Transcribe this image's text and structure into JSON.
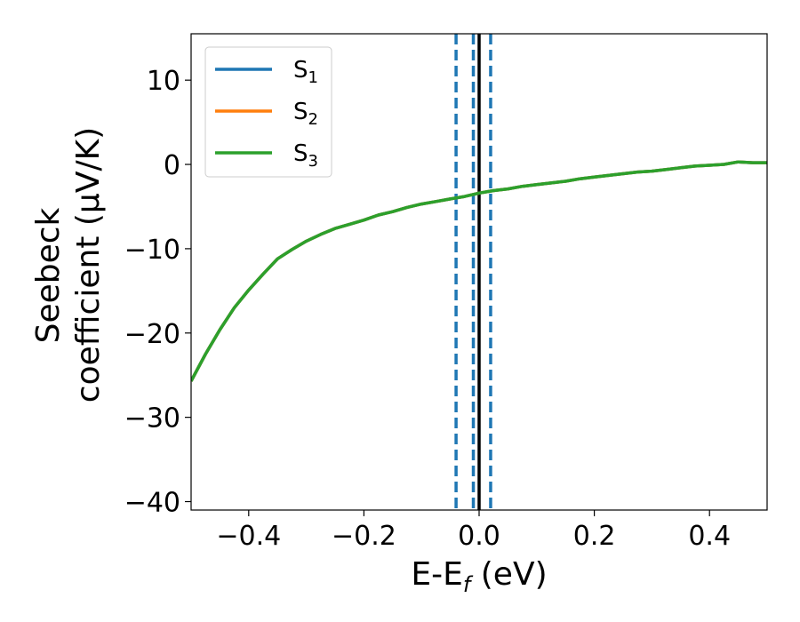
{
  "chart_data": {
    "type": "line",
    "xlabel": {
      "main": "E-E",
      "sub": "f",
      "unit": " (eV)"
    },
    "ylabel": {
      "line1": "Seebeck",
      "line2": "coefficient  (μV/K)"
    },
    "xlim": [
      -0.5,
      0.5
    ],
    "ylim": [
      -41,
      15.5
    ],
    "xticks": [
      {
        "value": -0.4,
        "label": "−0.4"
      },
      {
        "value": -0.2,
        "label": "−0.2"
      },
      {
        "value": 0.0,
        "label": "0.0"
      },
      {
        "value": 0.2,
        "label": "0.2"
      },
      {
        "value": 0.4,
        "label": "0.4"
      }
    ],
    "yticks": [
      {
        "value": 10,
        "label": "10"
      },
      {
        "value": 0,
        "label": "0"
      },
      {
        "value": -10,
        "label": "−10"
      },
      {
        "value": -20,
        "label": "−20"
      },
      {
        "value": -30,
        "label": "−30"
      },
      {
        "value": -40,
        "label": "−40"
      }
    ],
    "grid": false,
    "legend_position": "top-left",
    "x": [
      -0.5,
      -0.475,
      -0.45,
      -0.425,
      -0.4,
      -0.375,
      -0.35,
      -0.325,
      -0.3,
      -0.275,
      -0.25,
      -0.225,
      -0.2,
      -0.175,
      -0.15,
      -0.125,
      -0.1,
      -0.075,
      -0.05,
      -0.025,
      0.0,
      0.025,
      0.05,
      0.075,
      0.1,
      0.125,
      0.15,
      0.175,
      0.2,
      0.225,
      0.25,
      0.275,
      0.3,
      0.325,
      0.35,
      0.375,
      0.4,
      0.425,
      0.45,
      0.475,
      0.5
    ],
    "series": [
      {
        "name": "S",
        "sub": "1",
        "color": "#1f77b4",
        "values": [
          -25.7,
          -22.5,
          -19.6,
          -17.0,
          -14.9,
          -13.0,
          -11.2,
          -10.1,
          -9.1,
          -8.3,
          -7.6,
          -7.1,
          -6.6,
          -6.0,
          -5.6,
          -5.1,
          -4.7,
          -4.4,
          -4.1,
          -3.8,
          -3.4,
          -3.1,
          -2.9,
          -2.6,
          -2.4,
          -2.2,
          -2.0,
          -1.7,
          -1.5,
          -1.3,
          -1.1,
          -0.9,
          -0.8,
          -0.6,
          -0.4,
          -0.2,
          -0.1,
          0.0,
          0.3,
          0.2,
          0.2
        ]
      },
      {
        "name": "S",
        "sub": "2",
        "color": "#ff7f0e",
        "values": [
          -25.7,
          -22.5,
          -19.6,
          -17.0,
          -14.9,
          -13.0,
          -11.2,
          -10.1,
          -9.1,
          -8.3,
          -7.6,
          -7.1,
          -6.6,
          -6.0,
          -5.6,
          -5.1,
          -4.7,
          -4.4,
          -4.1,
          -3.8,
          -3.4,
          -3.1,
          -2.9,
          -2.6,
          -2.4,
          -2.2,
          -2.0,
          -1.7,
          -1.5,
          -1.3,
          -1.1,
          -0.9,
          -0.8,
          -0.6,
          -0.4,
          -0.2,
          -0.1,
          0.0,
          0.3,
          0.2,
          0.2
        ]
      },
      {
        "name": "S",
        "sub": "3",
        "color": "#2ca02c",
        "values": [
          -25.7,
          -22.5,
          -19.6,
          -17.0,
          -14.9,
          -13.0,
          -11.2,
          -10.1,
          -9.1,
          -8.3,
          -7.6,
          -7.1,
          -6.6,
          -6.0,
          -5.6,
          -5.1,
          -4.7,
          -4.4,
          -4.1,
          -3.8,
          -3.4,
          -3.1,
          -2.9,
          -2.6,
          -2.4,
          -2.2,
          -2.0,
          -1.7,
          -1.5,
          -1.3,
          -1.1,
          -0.9,
          -0.8,
          -0.6,
          -0.4,
          -0.2,
          -0.1,
          0.0,
          0.3,
          0.2,
          0.2
        ]
      }
    ],
    "vlines": [
      {
        "x": -0.04,
        "style": "dashed",
        "color": "#1f77b4"
      },
      {
        "x": -0.01,
        "style": "dashed",
        "color": "#1f77b4"
      },
      {
        "x": 0.02,
        "style": "dashed",
        "color": "#1f77b4"
      },
      {
        "x": 0.0,
        "style": "solid",
        "color": "#000000"
      }
    ]
  }
}
